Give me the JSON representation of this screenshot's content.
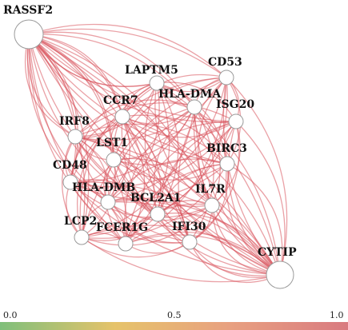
{
  "network": {
    "nodes": [
      {
        "id": "RASSF2",
        "label": "RASSF2",
        "size": "large"
      },
      {
        "id": "CD53",
        "label": "CD53",
        "size": "small"
      },
      {
        "id": "LAPTM5",
        "label": "LAPTM5",
        "size": "small"
      },
      {
        "id": "HLA-DMA",
        "label": "HLA-DMA",
        "size": "small"
      },
      {
        "id": "ISG20",
        "label": "ISG20",
        "size": "small"
      },
      {
        "id": "CCR7",
        "label": "CCR7",
        "size": "small"
      },
      {
        "id": "IRF8",
        "label": "IRF8",
        "size": "small"
      },
      {
        "id": "LST1",
        "label": "LST1",
        "size": "small"
      },
      {
        "id": "BIRC3",
        "label": "BIRC3",
        "size": "small"
      },
      {
        "id": "CD48",
        "label": "CD48",
        "size": "small"
      },
      {
        "id": "HLA-DMB",
        "label": "HLA-DMB",
        "size": "small"
      },
      {
        "id": "IL7R",
        "label": "IL7R",
        "size": "small"
      },
      {
        "id": "BCL2A1",
        "label": "BCL2A1",
        "size": "small"
      },
      {
        "id": "LCP2",
        "label": "LCP2",
        "size": "small"
      },
      {
        "id": "FCER1G",
        "label": "FCER1G",
        "size": "small"
      },
      {
        "id": "IFI30",
        "label": "IFI30",
        "size": "small"
      },
      {
        "id": "CYTIP",
        "label": "CYTIP",
        "size": "large"
      }
    ],
    "edge_color": "#d9545c"
  },
  "colorbar": {
    "tick_labels": [
      "0.0",
      "0.5",
      "1.0"
    ],
    "colors": [
      "#7fbf7b",
      "#e6c36a",
      "#e8a080",
      "#d97a80"
    ]
  }
}
